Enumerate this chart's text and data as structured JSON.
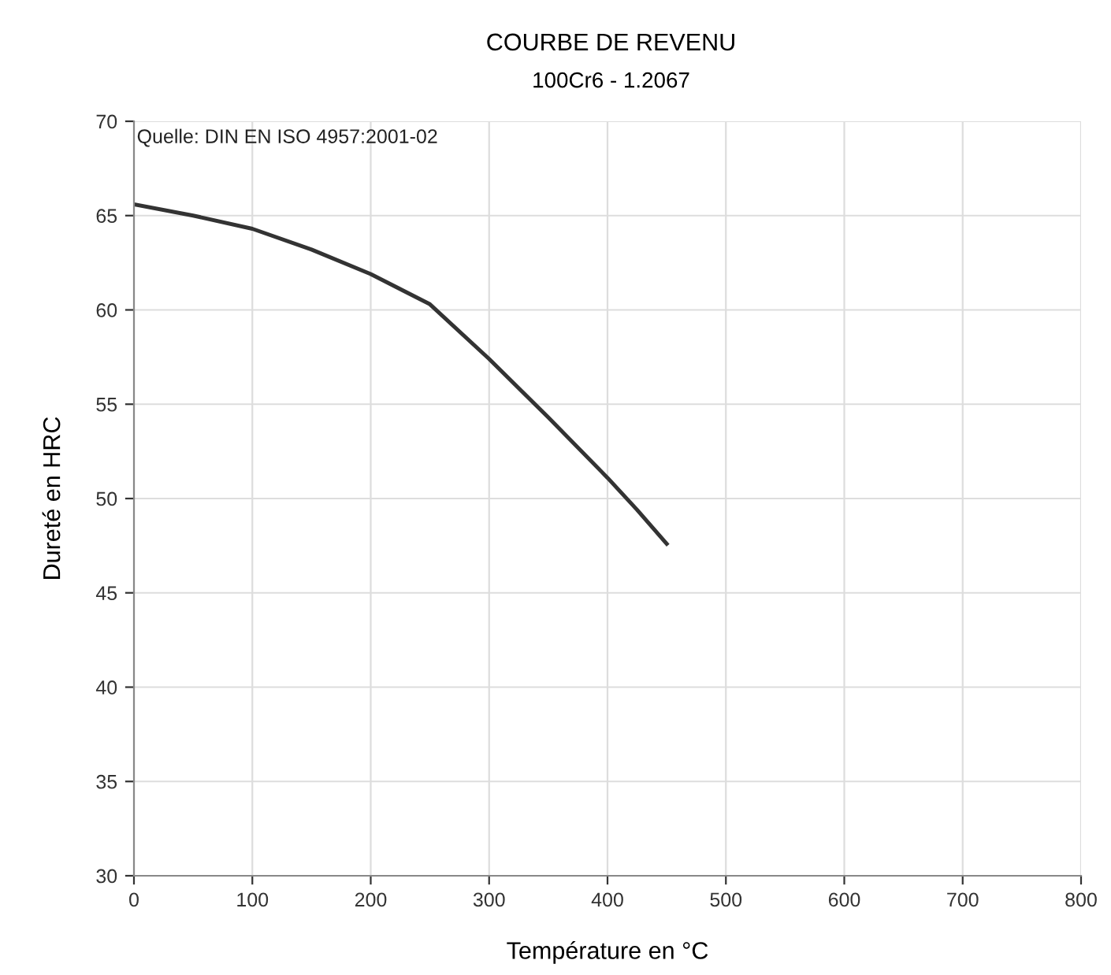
{
  "chart_data": {
    "type": "line",
    "title": "COURBE DE REVENU",
    "subtitle": "100Cr6 - 1.2067",
    "xlabel": "Température en °C",
    "ylabel": "Dureté en HRC",
    "annotations": [
      "Quelle: DIN EN ISO 4957:2001-02"
    ],
    "series": [
      {
        "color": "#333333",
        "x": [
          0,
          50,
          100,
          150,
          200,
          250,
          300,
          350,
          400,
          425,
          450
        ],
        "values": [
          65.6,
          65.0,
          64.3,
          63.2,
          61.9,
          60.3,
          57.4,
          54.3,
          51.1,
          49.4,
          47.6
        ]
      }
    ],
    "xlim": [
      0,
      800
    ],
    "xticks": [
      0,
      100,
      200,
      300,
      400,
      500,
      600,
      700,
      800
    ],
    "ylim": [
      30,
      70
    ],
    "yticks": [
      30,
      35,
      40,
      45,
      50,
      55,
      60,
      65,
      70
    ],
    "grid": true,
    "marker": "none",
    "line_style": "solid"
  }
}
